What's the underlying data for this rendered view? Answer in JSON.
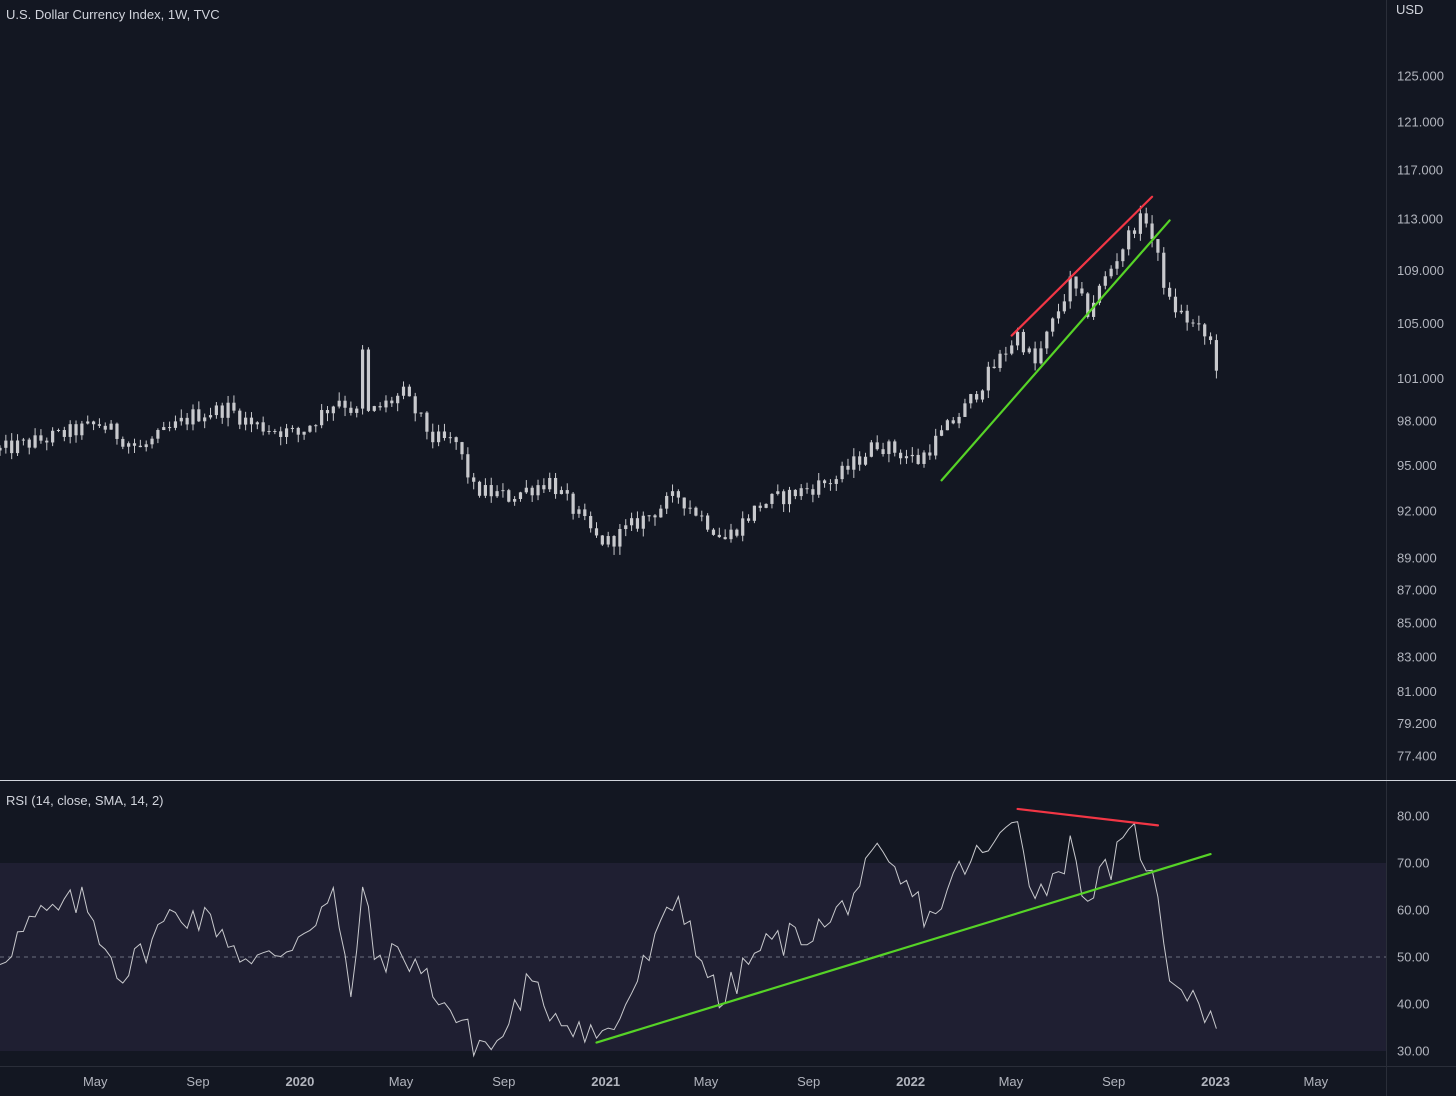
{
  "main_title": "U.S. Dollar Currency Index, 1W, TVC",
  "currency": "USD",
  "rsi_title": "RSI (14, close, SMA, 14, 2)",
  "colors": {
    "background": "#131722",
    "candle": "#c8c9cd",
    "rsi_line": "#c8c9cd",
    "rsi_band": "#2a2640",
    "red_line": "#f23645",
    "green_line": "#56d327",
    "axis_text": "#b2b5be",
    "separator": "#d1d4dc"
  },
  "chart_data": [
    {
      "type": "candlestick",
      "title": "U.S. Dollar Currency Index, 1W, TVC",
      "ylabel": "USD",
      "scale": "log",
      "yticks": [
        "125.000",
        "121.000",
        "117.000",
        "113.000",
        "109.000",
        "105.000",
        "101.000",
        "98.000",
        "95.000",
        "92.000",
        "89.000",
        "87.000",
        "85.000",
        "83.000",
        "81.000",
        "79.200",
        "77.400"
      ],
      "ylim": [
        76.2,
        130.5
      ],
      "xticks": [
        "May",
        "Sep",
        "2020",
        "May",
        "Sep",
        "2021",
        "May",
        "Sep",
        "2022",
        "May",
        "Sep",
        "2023",
        "May"
      ],
      "xtick_bold": [
        false,
        false,
        true,
        false,
        false,
        true,
        false,
        false,
        true,
        false,
        false,
        true,
        false
      ],
      "x_start": "2019-01-07",
      "x_end": "2023-07-24",
      "anchors": [
        [
          "2019-01-07",
          96.0
        ],
        [
          "2019-03-04",
          96.8
        ],
        [
          "2019-05-06",
          97.8
        ],
        [
          "2019-06-24",
          96.1
        ],
        [
          "2019-08-26",
          98.4
        ],
        [
          "2019-10-07",
          98.9
        ],
        [
          "2019-11-04",
          97.8
        ],
        [
          "2019-12-30",
          97.1
        ],
        [
          "2020-02-17",
          99.6
        ],
        [
          "2020-03-09",
          98.5
        ],
        [
          "2020-03-16",
          102.8
        ],
        [
          "2020-03-23",
          98.5
        ],
        [
          "2020-05-04",
          99.9
        ],
        [
          "2020-06-08",
          96.8
        ],
        [
          "2020-07-06",
          96.5
        ],
        [
          "2020-07-27",
          93.4
        ],
        [
          "2020-09-07",
          92.9
        ],
        [
          "2020-10-26",
          94.0
        ],
        [
          "2020-12-21",
          90.2
        ],
        [
          "2021-01-04",
          90.0
        ],
        [
          "2021-03-29",
          93.0
        ],
        [
          "2021-05-24",
          90.2
        ],
        [
          "2021-07-05",
          92.4
        ],
        [
          "2021-10-04",
          94.1
        ],
        [
          "2021-11-22",
          96.5
        ],
        [
          "2022-01-10",
          95.3
        ],
        [
          "2022-03-07",
          98.9
        ],
        [
          "2022-05-09",
          104.2
        ],
        [
          "2022-05-30",
          102.0
        ],
        [
          "2022-07-11",
          108.0
        ],
        [
          "2022-08-01",
          105.9
        ],
        [
          "2022-09-26",
          112.5
        ],
        [
          "2022-10-10",
          113.1
        ],
        [
          "2022-11-07",
          106.5
        ],
        [
          "2022-12-26",
          103.6
        ],
        [
          "2023-01-02",
          102.0
        ]
      ]
    },
    {
      "type": "line",
      "title": "RSI (14, close, SMA, 14, 2)",
      "yticks": [
        "80.00",
        "70.00",
        "60.00",
        "50.00",
        "40.00",
        "30.00"
      ],
      "ylim": [
        27.4,
        83.6
      ],
      "band": [
        30,
        70
      ],
      "midline": 50,
      "anchors": [
        [
          "2019-01-07",
          50
        ],
        [
          "2019-02-18",
          58
        ],
        [
          "2019-04-15",
          62
        ],
        [
          "2019-06-03",
          46
        ],
        [
          "2019-08-05",
          60
        ],
        [
          "2019-09-23",
          57
        ],
        [
          "2019-11-04",
          48
        ],
        [
          "2019-12-16",
          52
        ],
        [
          "2020-02-10",
          63
        ],
        [
          "2020-03-02",
          41
        ],
        [
          "2020-03-16",
          65
        ],
        [
          "2020-03-30",
          50
        ],
        [
          "2020-05-11",
          50
        ],
        [
          "2020-06-15",
          42
        ],
        [
          "2020-07-27",
          32
        ],
        [
          "2020-08-24",
          31
        ],
        [
          "2020-09-28",
          44
        ],
        [
          "2020-11-02",
          38
        ],
        [
          "2020-12-28",
          33
        ],
        [
          "2021-01-11",
          35
        ],
        [
          "2021-03-29",
          63
        ],
        [
          "2021-05-17",
          40
        ],
        [
          "2021-07-05",
          52
        ],
        [
          "2021-09-27",
          57
        ],
        [
          "2021-11-22",
          71
        ],
        [
          "2022-01-03",
          63
        ],
        [
          "2022-01-24",
          58
        ],
        [
          "2022-03-07",
          70
        ],
        [
          "2022-04-11",
          73
        ],
        [
          "2022-05-09",
          81
        ],
        [
          "2022-05-30",
          62
        ],
        [
          "2022-07-11",
          73
        ],
        [
          "2022-08-01",
          63
        ],
        [
          "2022-09-26",
          76
        ],
        [
          "2022-10-10",
          71
        ],
        [
          "2022-10-24",
          61
        ],
        [
          "2022-11-07",
          47
        ],
        [
          "2022-12-05",
          42
        ],
        [
          "2023-01-02",
          36
        ]
      ]
    }
  ],
  "trendlines": [
    {
      "name": "price-resistance-line",
      "pane": "price",
      "color": "red",
      "from": [
        "2022-05-02",
        104.1
      ],
      "to": [
        "2022-10-17",
        114.8
      ]
    },
    {
      "name": "price-support-line",
      "pane": "price",
      "color": "green",
      "from": [
        "2022-02-07",
        94.0
      ],
      "to": [
        "2022-11-07",
        112.9
      ]
    },
    {
      "name": "rsi-divergence-line",
      "pane": "rsi",
      "color": "red",
      "from": [
        "2022-05-09",
        81.5
      ],
      "to": [
        "2022-10-24",
        78.0
      ]
    },
    {
      "name": "rsi-support-line",
      "pane": "rsi",
      "color": "green",
      "from": [
        "2020-12-21",
        31.8
      ],
      "to": [
        "2022-12-26",
        71.9
      ]
    }
  ]
}
